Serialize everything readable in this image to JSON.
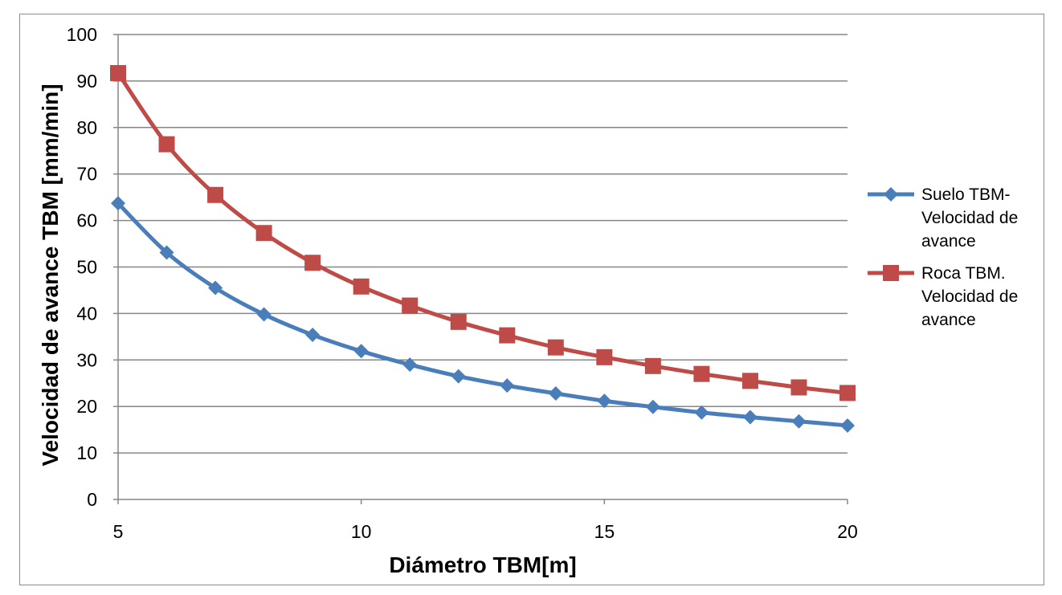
{
  "chart_data": {
    "type": "line",
    "title": "",
    "xlabel": "Diámetro TBM[m]",
    "ylabel": "Velocidad de avance TBM [mm/min]",
    "xlim": [
      5,
      20
    ],
    "ylim": [
      0,
      100
    ],
    "x_ticks": [
      "5",
      "10",
      "15",
      "20"
    ],
    "y_ticks": [
      "0",
      "10",
      "20",
      "30",
      "40",
      "50",
      "60",
      "70",
      "80",
      "90",
      "100"
    ],
    "grid": true,
    "legend_position": "right",
    "x": [
      5,
      6,
      7,
      8,
      9,
      10,
      11,
      12,
      13,
      14,
      15,
      16,
      17,
      18,
      19,
      20
    ],
    "series": [
      {
        "name": "Suelo TBM-Velocidad de avance",
        "legend_lines": [
          "Suelo TBM-",
          "Velocidad de",
          "avance"
        ],
        "color": "#4a7ebb",
        "marker": "diamond",
        "values": [
          63.7,
          53.1,
          45.5,
          39.8,
          35.4,
          31.9,
          29.0,
          26.5,
          24.5,
          22.8,
          21.2,
          19.9,
          18.7,
          17.7,
          16.8,
          15.9
        ]
      },
      {
        "name": "Roca TBM. Velocidad de avance",
        "legend_lines": [
          "Roca TBM.",
          "Velocidad de",
          "avance"
        ],
        "color": "#be4b48",
        "marker": "square",
        "values": [
          91.7,
          76.4,
          65.5,
          57.3,
          50.9,
          45.8,
          41.7,
          38.2,
          35.3,
          32.7,
          30.6,
          28.7,
          27.0,
          25.5,
          24.1,
          22.9
        ]
      }
    ]
  }
}
